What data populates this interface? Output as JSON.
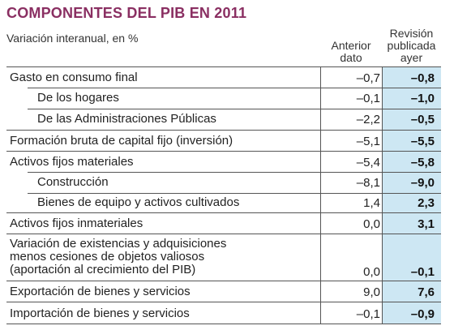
{
  "title": "COMPONENTES DEL PIB EN 2011",
  "subtitle": "Variación interanual, en %",
  "headers": {
    "anterior_line1": "Anterior",
    "anterior_line2": "dato",
    "revision_line1": "Revisión",
    "revision_line2": "publicada",
    "revision_line3": "ayer"
  },
  "rows": [
    {
      "label": "Gasto en consumo final",
      "indent": 0,
      "anterior": "–0,7",
      "revision": "–0,8"
    },
    {
      "label": "De los hogares",
      "indent": 1,
      "anterior": "–0,1",
      "revision": "–1,0"
    },
    {
      "label": "De las Administraciones Públicas",
      "indent": 1,
      "anterior": "–2,2",
      "revision": "–0,5"
    },
    {
      "label": "Formación bruta de capital fijo (inversión)",
      "indent": 0,
      "anterior": "–5,1",
      "revision": "–5,5"
    },
    {
      "label": "Activos fijos materiales",
      "indent": 0,
      "anterior": "–5,4",
      "revision": "–5,8"
    },
    {
      "label": "Construcción",
      "indent": 1,
      "anterior": "–8,1",
      "revision": "–9,0"
    },
    {
      "label": "Bienes de equipo y activos cultivados",
      "indent": 1,
      "anterior": "1,4",
      "revision": "2,3"
    },
    {
      "label": "Activos fijos inmateriales",
      "indent": 0,
      "anterior": "0,0",
      "revision": "3,1"
    },
    {
      "label_lines": [
        "Variación de existencias y adquisiciones",
        "menos cesiones de objetos valiosos",
        "(aportación al crecimiento del PIB)"
      ],
      "indent": 0,
      "anterior": "0,0",
      "revision": "–0,1"
    },
    {
      "label": "Exportación de bienes y servicios",
      "indent": 0,
      "anterior": "9,0",
      "revision": "7,6"
    },
    {
      "label": "Importación de bienes y servicios",
      "indent": 0,
      "anterior": "–0,1",
      "revision": "–0,9"
    }
  ],
  "colors": {
    "title": "#8a2f62",
    "highlight_column": "#cde7f3"
  }
}
